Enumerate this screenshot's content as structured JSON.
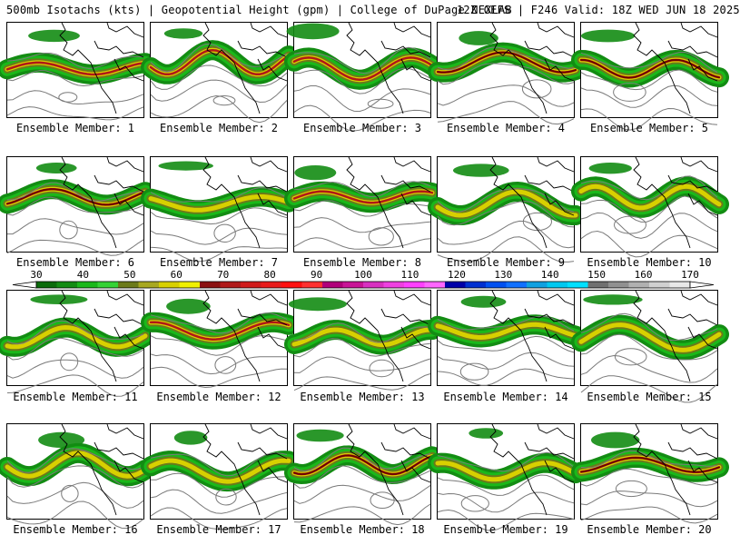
{
  "header": {
    "left": "500mb Isotachs (kts) | Geopotential Height (gpm) | College of DuPage NEXLAB",
    "right": "12Z GEFS | F246 Valid: 18Z WED JUN 18 2025"
  },
  "caption_prefix": "Ensemble Member:",
  "members": [
    {
      "id": 1,
      "label": "Ensemble Member: 1",
      "max_speed": "70"
    },
    {
      "id": 2,
      "label": "Ensemble Member: 2",
      "max_speed": "70"
    },
    {
      "id": 3,
      "label": "Ensemble Member: 3",
      "max_speed": "70"
    },
    {
      "id": 4,
      "label": "Ensemble Member: 4",
      "max_speed": "80"
    },
    {
      "id": 5,
      "label": "Ensemble Member: 5",
      "max_speed": "80"
    },
    {
      "id": 6,
      "label": "Ensemble Member: 6",
      "max_speed": "80"
    },
    {
      "id": 7,
      "label": "Ensemble Member: 7",
      "max_speed": "60"
    },
    {
      "id": 8,
      "label": "Ensemble Member: 8",
      "max_speed": "70"
    },
    {
      "id": 9,
      "label": "Ensemble Member: 9",
      "max_speed": "60"
    },
    {
      "id": 10,
      "label": "Ensemble Member: 10",
      "max_speed": "60"
    },
    {
      "id": 11,
      "label": "Ensemble Member: 11",
      "max_speed": "60"
    },
    {
      "id": 12,
      "label": "Ensemble Member: 12",
      "max_speed": "70"
    },
    {
      "id": 13,
      "label": "Ensemble Member: 13",
      "max_speed": "60"
    },
    {
      "id": 14,
      "label": "Ensemble Member: 14",
      "max_speed": "60"
    },
    {
      "id": 15,
      "label": "Ensemble Member: 15",
      "max_speed": "60"
    },
    {
      "id": 16,
      "label": "Ensemble Member: 16",
      "max_speed": "60"
    },
    {
      "id": 17,
      "label": "Ensemble Member: 17",
      "max_speed": "60"
    },
    {
      "id": 18,
      "label": "Ensemble Member: 18",
      "max_speed": "80"
    },
    {
      "id": 19,
      "label": "Ensemble Member: 19",
      "max_speed": "60"
    },
    {
      "id": 20,
      "label": "Ensemble Member: 20",
      "max_speed": "80"
    }
  ],
  "colorbar": {
    "units": "kts",
    "labels": [
      "30",
      "40",
      "50",
      "60",
      "70",
      "80",
      "90",
      "100",
      "110",
      "120",
      "130",
      "140",
      "150",
      "160",
      "170"
    ],
    "colors": [
      "#0b6b0b",
      "#138c13",
      "#1ab81a",
      "#35d235",
      "#6b7a1a",
      "#a8a820",
      "#d8d000",
      "#f0f000",
      "#8b1010",
      "#b01818",
      "#d01a1a",
      "#e81a1a",
      "#ff1010",
      "#ff3030",
      "#b0007a",
      "#c81496",
      "#d830c0",
      "#ee40e0",
      "#ff40ff",
      "#ff66ff",
      "#0000a8",
      "#0030d0",
      "#0050f0",
      "#1070ff",
      "#10a0e0",
      "#00c8f0",
      "#00e0ff",
      "#707070",
      "#909090",
      "#b0b0b0",
      "#d0d0d0",
      "#e8e8e8"
    ]
  },
  "map_colors": {
    "coast": "#000000",
    "height_contour": "#7a7a7a"
  }
}
